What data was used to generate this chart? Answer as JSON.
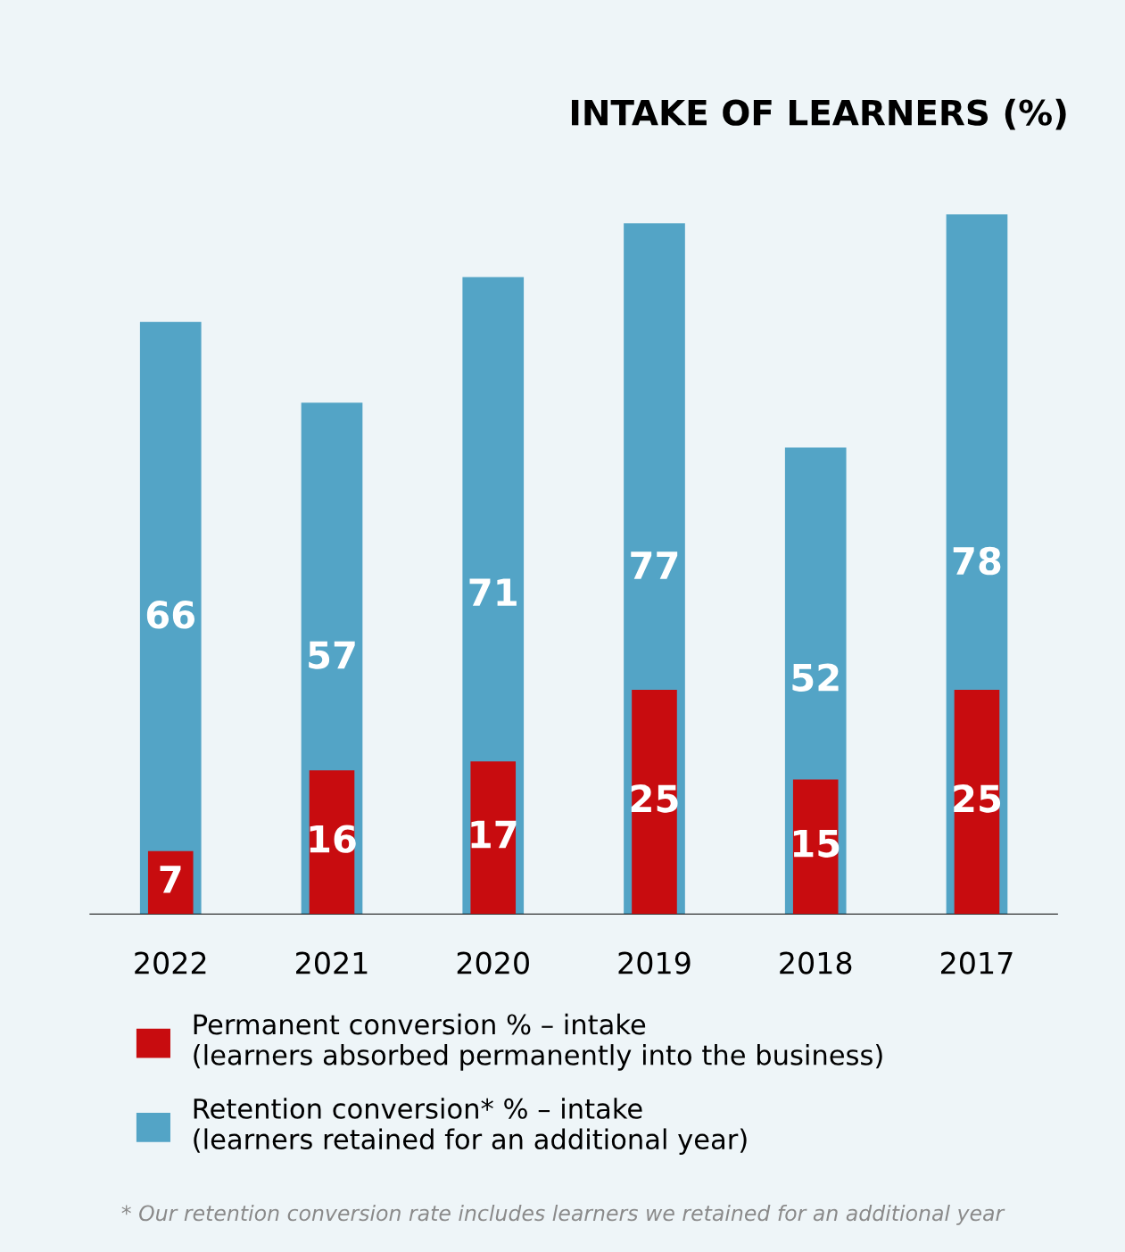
{
  "chart_data": {
    "type": "bar",
    "title": "INTAKE OF LEARNERS (%)",
    "categories": [
      "2022",
      "2021",
      "2020",
      "2019",
      "2018",
      "2017"
    ],
    "series": [
      {
        "name": "Retention conversion* % – intake\n(learners retained for an additional year)",
        "color": "#53a4c6",
        "values": [
          66,
          57,
          71,
          77,
          52,
          78
        ]
      },
      {
        "name": "Permanent conversion % – intake\n(learners absorbed permanently into the business)",
        "color": "#c80c0f",
        "values": [
          7,
          16,
          17,
          25,
          15,
          25
        ]
      }
    ],
    "relative": false,
    "data_labels": true,
    "legend": "bottom",
    "grid": false,
    "annotations": [
      "* Our retention conversion rate includes learners we retained for an additional year"
    ]
  }
}
